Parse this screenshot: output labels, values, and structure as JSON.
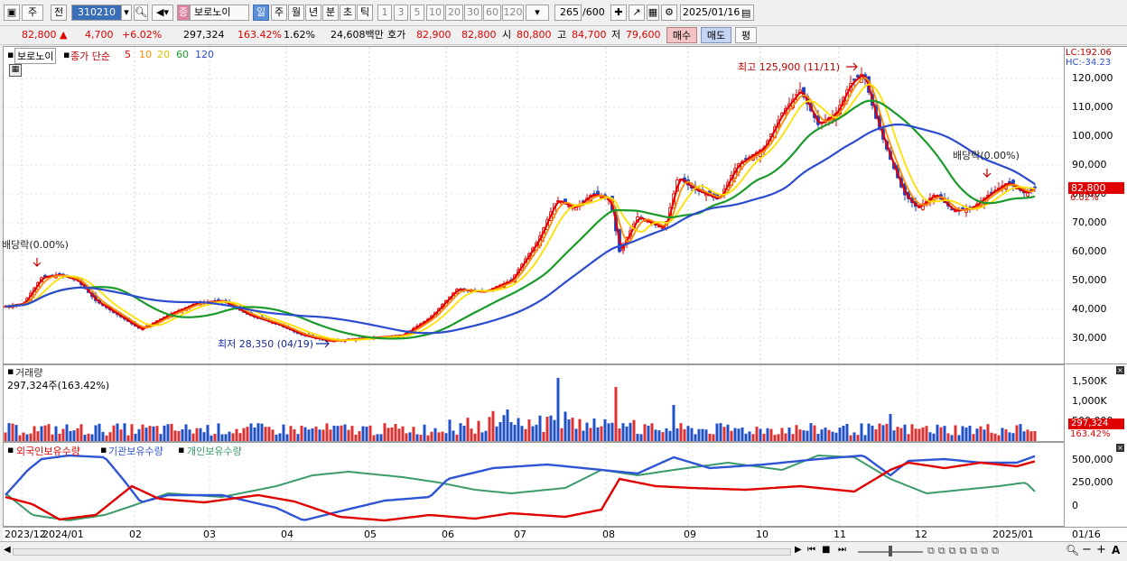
{
  "toolbar": {
    "type_select": "주",
    "prev_btn": "전",
    "code": "310210",
    "name_badge": "증",
    "name": "보로노이",
    "periods": [
      "일",
      "주",
      "월",
      "년",
      "분",
      "초",
      "틱"
    ],
    "period_selected": "일",
    "intervals": [
      "1",
      "3",
      "5",
      "10",
      "20",
      "30",
      "60",
      "120"
    ],
    "count": "265",
    "count_total": "/600",
    "date": "2025/01/16"
  },
  "infobar": {
    "price": "82,800",
    "change": "4,700",
    "change_pct": "+6.02%",
    "volume": "297,324",
    "volume_pct": "163.42%",
    "turnover": "1.62%",
    "amount": "24,608백만",
    "ask_label": "호가",
    "ask": "82,900",
    "bid": "82,800",
    "open_label": "시",
    "open": "80,800",
    "high_label": "고",
    "high": "84,700",
    "low_label": "저",
    "low": "79,600",
    "buy_btn": "매수",
    "sell_btn": "매도",
    "eval_btn": "평"
  },
  "price_pane": {
    "legend_name": "보로노이",
    "legend_ma": "종가 단순",
    "ma_periods": [
      "5",
      "10",
      "20",
      "60",
      "120"
    ],
    "ma_colors": [
      "#e00000",
      "#ff8c00",
      "#ffd700",
      "#1a9a2a",
      "#2c4cd0"
    ],
    "lc": "LC:192.06",
    "hc": "HC:-34.23",
    "annot_high": "최고 125,900 (11/11)",
    "annot_low": "최저 28,350 (04/19)",
    "annot_div1": "배당락(0.00%)",
    "annot_div2": "배당락(0.00%)",
    "last_price": "82,800",
    "last_pct": "6.02%",
    "y_ticks": [
      "120,000",
      "110,000",
      "100,000",
      "90,000",
      "80,000",
      "70,000",
      "60,000",
      "50,000",
      "40,000",
      "30,000"
    ]
  },
  "volume_pane": {
    "title": "거래량",
    "subtitle": "297,324주(163.42%)",
    "y_ticks": [
      "1,500K",
      "1,000K",
      "500,000"
    ],
    "last_value": "297,324",
    "last_pct": "163.42%"
  },
  "holding_pane": {
    "legend": [
      "외국인보유수량",
      "기관보유수량",
      "개인보유수량"
    ],
    "colors": [
      "#e00000",
      "#2f55d4",
      "#3a9a6a"
    ],
    "y_ticks": [
      "500,000",
      "250,000",
      "0"
    ]
  },
  "x_axis": {
    "labels": [
      "2023/12",
      "2024/01",
      "02",
      "03",
      "04",
      "05",
      "06",
      "07",
      "08",
      "09",
      "10",
      "11",
      "12",
      "2025/01"
    ],
    "right_label": "01/16"
  },
  "chart_data": [
    {
      "type": "line",
      "title": "",
      "series": [
        {
          "name": "5",
          "values": []
        },
        {
          "name": "120",
          "values": []
        }
      ],
      "ylim": [
        25000,
        130000
      ],
      "annotations": [
        "최고 125,900 (11/11)",
        "최저 28,350 (04/19)"
      ]
    }
  ]
}
